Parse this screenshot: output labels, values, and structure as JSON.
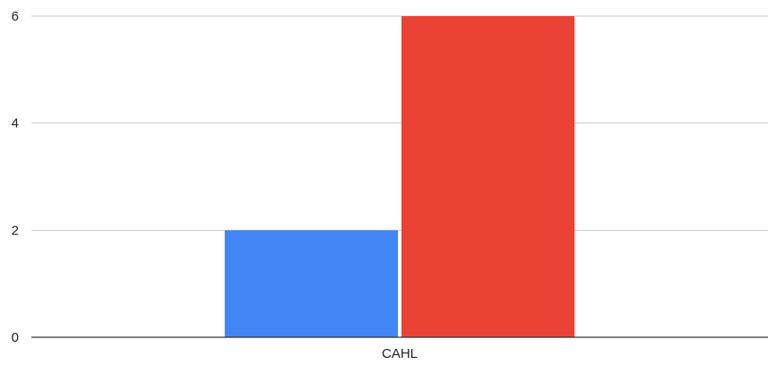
{
  "chart_data": {
    "type": "bar",
    "categories": [
      "CAHL"
    ],
    "series": [
      {
        "values": [
          2
        ],
        "color": "#4285f4"
      },
      {
        "values": [
          6
        ],
        "color": "#ea4335"
      }
    ],
    "ylim": [
      0,
      6
    ],
    "yticks": [
      0,
      2,
      4,
      6
    ],
    "grid": true,
    "title": "",
    "xlabel": "",
    "ylabel": ""
  }
}
